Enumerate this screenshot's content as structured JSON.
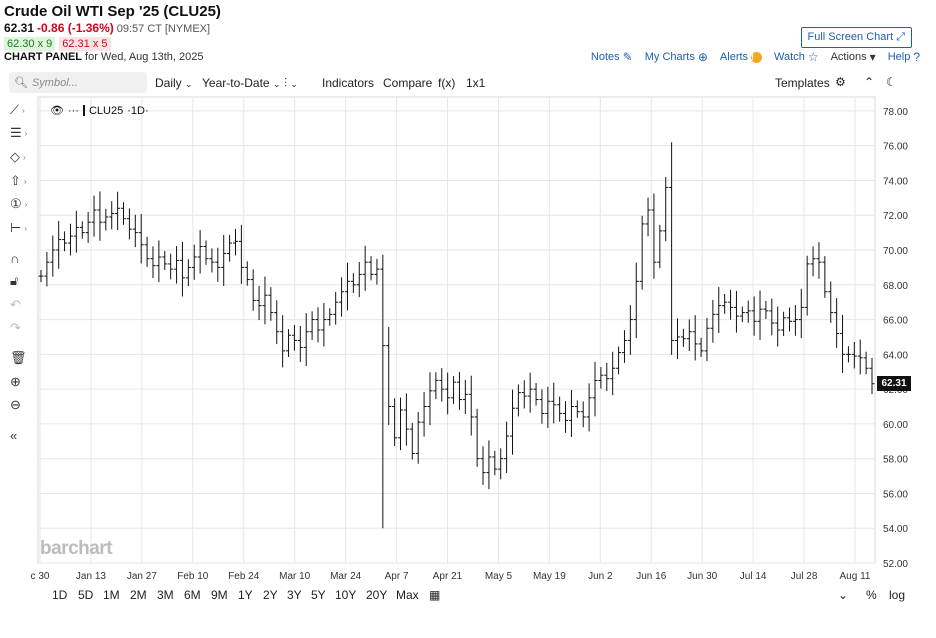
{
  "header": {
    "title": "Crude Oil WTI Sep '25 (CLU25)",
    "last": "62.31",
    "change": "-0.86 (-1.36%)",
    "timestamp": "09:57 CT [NYMEX]",
    "bid": "62.30 x 9",
    "ask": "62.31 x 5",
    "panel_label": "CHART PANEL",
    "panel_date": "for Wed, Aug 13th, 2025",
    "fullscreen_label": "Full Screen Chart",
    "links": {
      "notes": "Notes",
      "my_charts": "My Charts",
      "alerts": "Alerts",
      "watch": "Watch",
      "actions": "Actions",
      "help": "Help"
    }
  },
  "toolbar": {
    "symbol_placeholder": "Symbol...",
    "interval": "Daily",
    "period": "Year-to-Date",
    "indicators": "Indicators",
    "compare": "Compare",
    "fx": "f(x)",
    "layout": "1x1",
    "templates": "Templates"
  },
  "legend": {
    "symbol": "CLU25",
    "interval": "·1D·"
  },
  "watermark": "barchart",
  "ranges": [
    "1D",
    "5D",
    "1M",
    "2M",
    "3M",
    "6M",
    "9M",
    "1Y",
    "2Y",
    "3Y",
    "5Y",
    "10Y",
    "20Y",
    "Max"
  ],
  "bottom_right": {
    "percent": "%",
    "log": "log"
  },
  "colors": {
    "accent": "#1f5fb0",
    "down": "#d0021b",
    "up": "#1a7f1a",
    "bars": "#111111"
  },
  "chart_data": {
    "type": "bar",
    "ohlc": true,
    "y_ticks": [
      "78.00",
      "76.00",
      "74.00",
      "72.00",
      "70.00",
      "68.00",
      "66.00",
      "64.00",
      "62.00",
      "60.00",
      "58.00",
      "56.00",
      "54.00",
      "52.00"
    ],
    "ylim": [
      52,
      78.8
    ],
    "x_ticks": [
      "c 30",
      "Jan 13",
      "Jan 27",
      "Feb 10",
      "Feb 24",
      "Mar 10",
      "Mar 24",
      "Apr 7",
      "Apr 21",
      "May 5",
      "May 19",
      "Jun 2",
      "Jun 16",
      "Jun 30",
      "Jul 14",
      "Jul 28",
      "Aug 11"
    ],
    "last_price": "62.31",
    "closes": [
      68.5,
      69.3,
      70.0,
      70.6,
      70.4,
      70.8,
      71.3,
      71.0,
      71.6,
      72.3,
      71.6,
      71.9,
      72.1,
      72.4,
      71.8,
      71.2,
      71.0,
      70.3,
      69.5,
      69.1,
      69.6,
      69.2,
      68.9,
      69.4,
      68.4,
      69.0,
      69.6,
      70.2,
      69.5,
      69.3,
      69.0,
      69.8,
      70.4,
      70.5,
      69.0,
      68.3,
      67.1,
      66.8,
      67.4,
      66.4,
      65.3,
      64.2,
      65.1,
      64.8,
      64.4,
      65.3,
      66.0,
      65.4,
      66.0,
      66.3,
      67.0,
      67.6,
      68.2,
      68.0,
      68.6,
      69.3,
      68.6,
      68.9,
      64.5,
      61.0,
      59.2,
      60.8,
      59.7,
      58.3,
      60.1,
      61.0,
      61.9,
      62.5,
      62.0,
      61.5,
      62.4,
      61.4,
      61.7,
      60.4,
      58.0,
      57.2,
      58.1,
      57.4,
      58.0,
      59.3,
      60.9,
      61.8,
      61.6,
      62.0,
      61.4,
      60.6,
      61.3,
      61.1,
      60.6,
      60.2,
      61.0,
      60.7,
      60.4,
      61.5,
      62.5,
      62.8,
      62.6,
      63.2,
      64.1,
      64.8,
      66.0,
      68.2,
      71.5,
      72.3,
      69.3,
      71.1,
      73.6,
      64.8,
      65.0,
      64.9,
      65.3,
      64.6,
      64.2,
      65.5,
      66.3,
      66.8,
      67.0,
      66.7,
      66.2,
      66.4,
      66.5,
      65.9,
      66.6,
      66.5,
      65.8,
      65.4,
      66.1,
      65.9,
      66.0,
      66.7,
      69.2,
      69.5,
      69.3,
      67.6,
      66.4,
      65.2,
      64.0,
      64.0,
      63.9,
      63.8,
      63.2,
      62.31
    ]
  }
}
